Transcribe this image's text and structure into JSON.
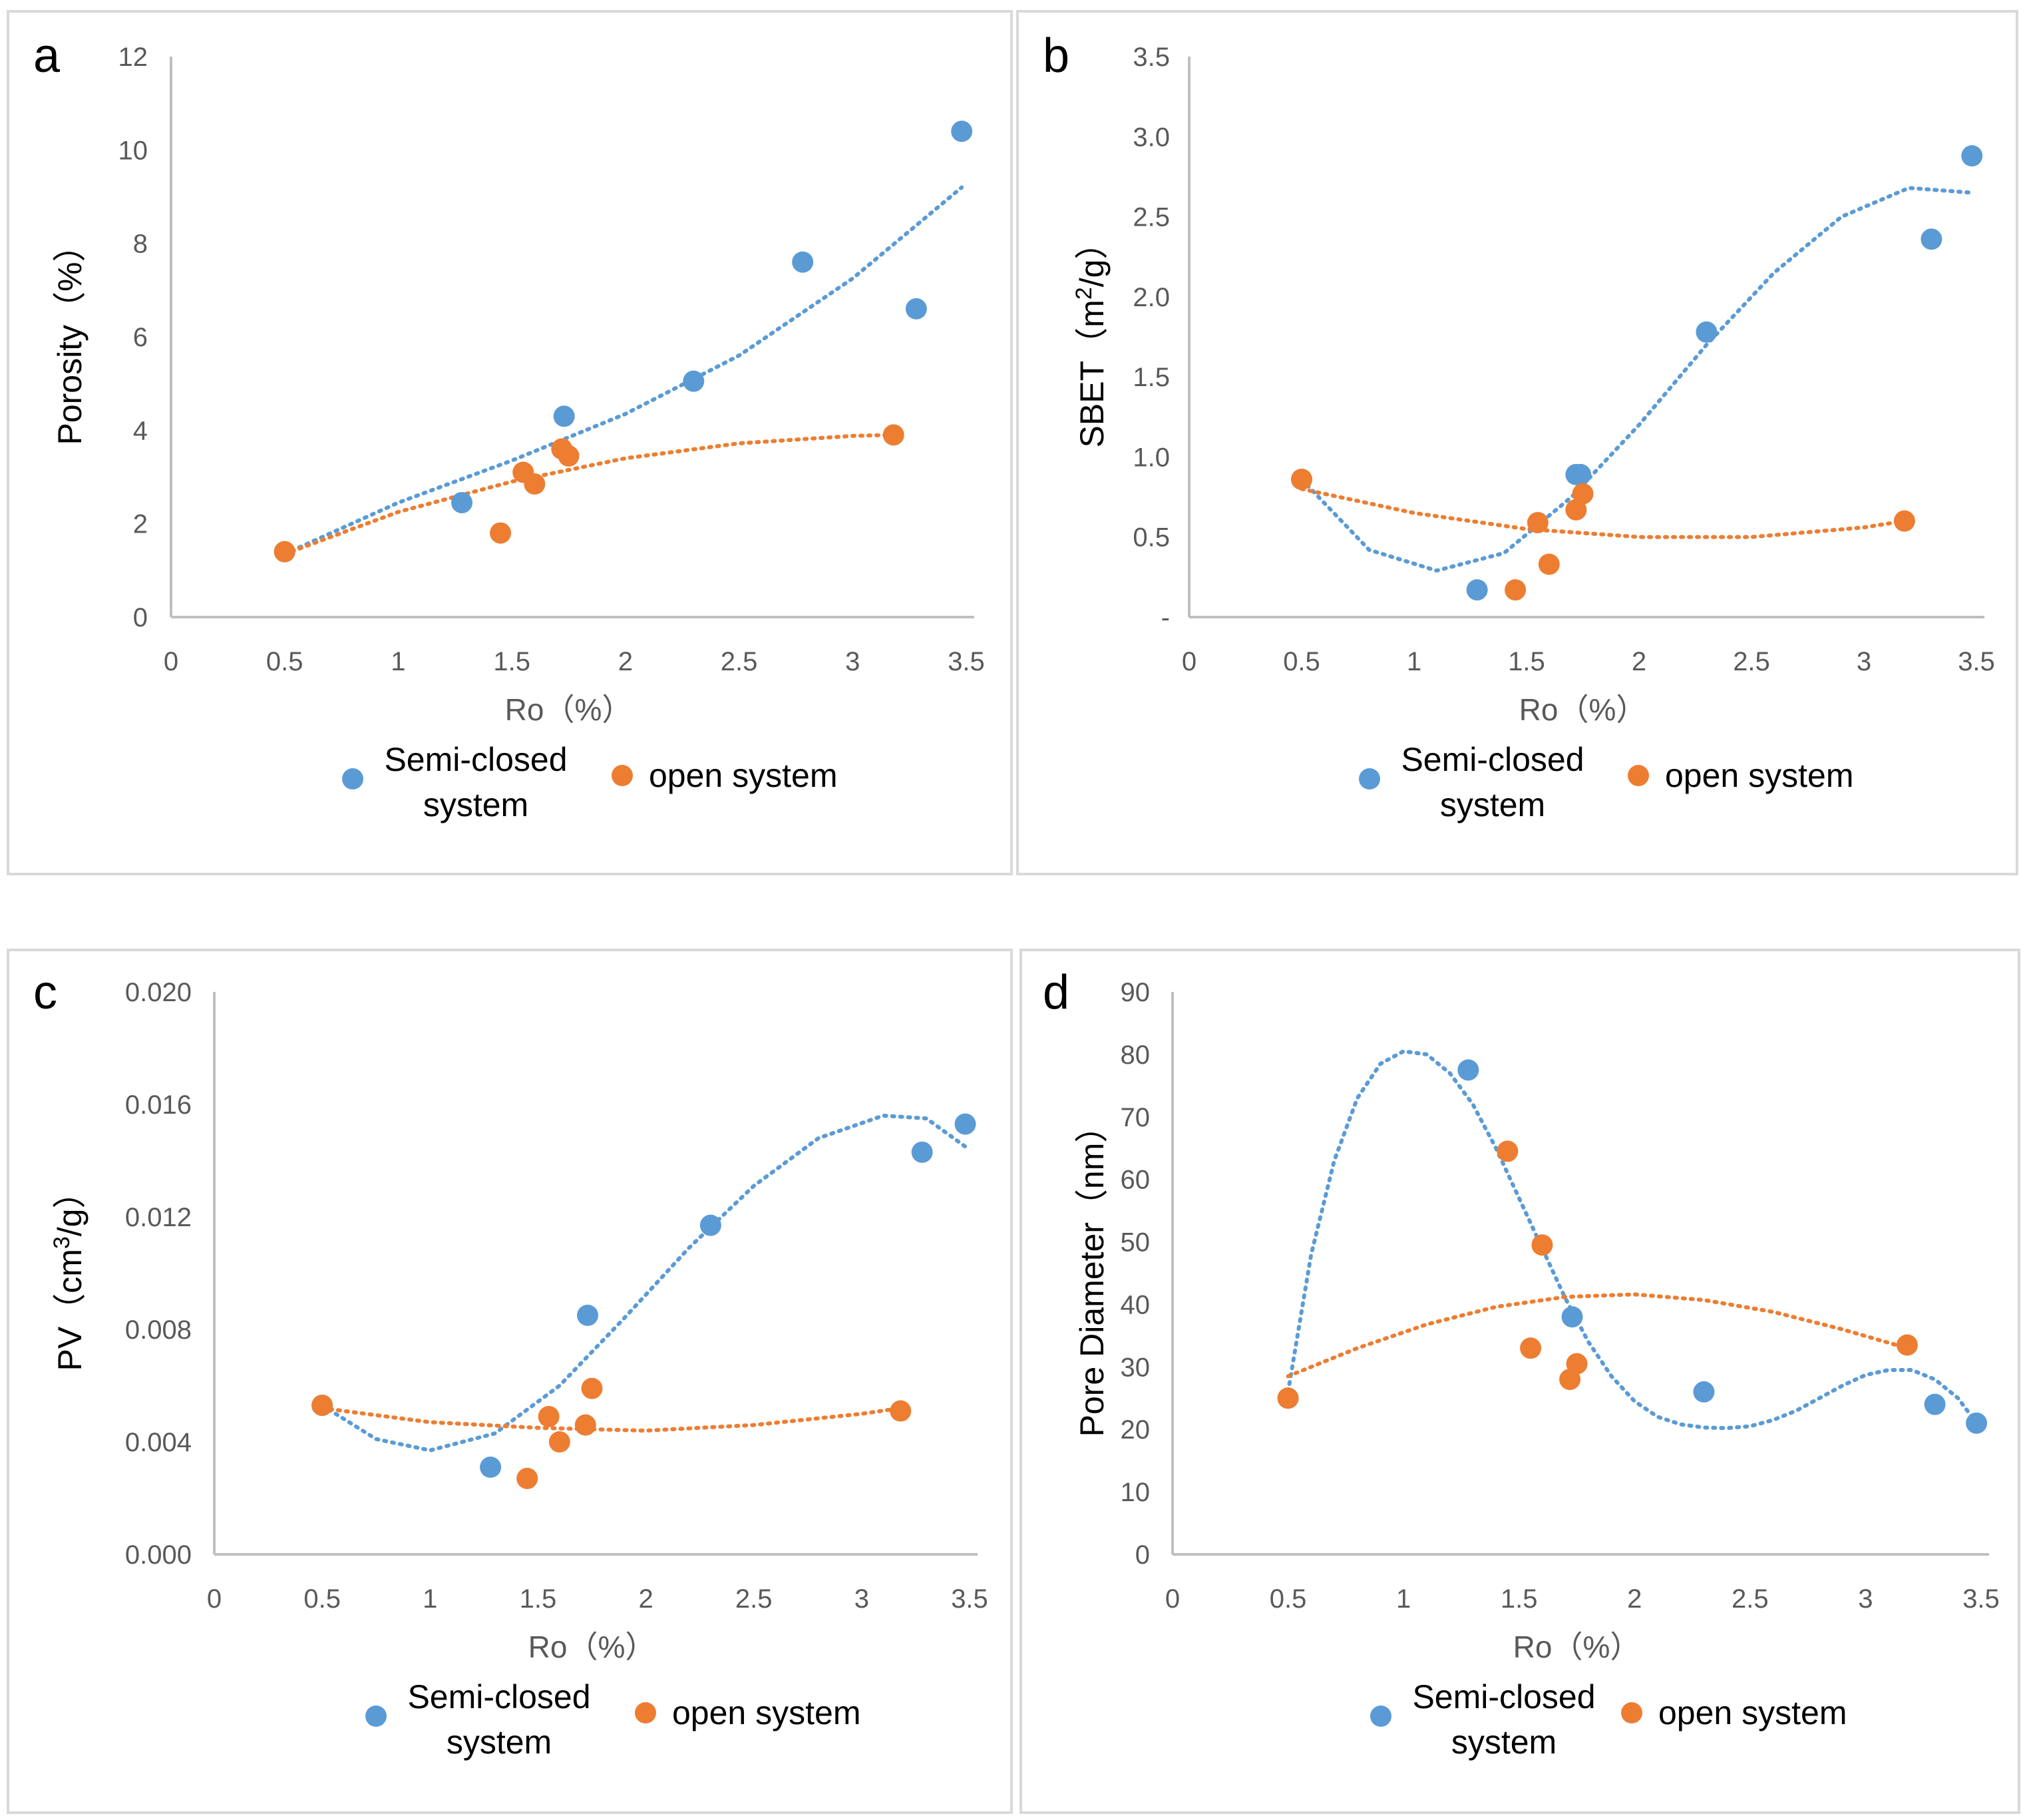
{
  "figure": {
    "semi_color": "#5b9bd5",
    "open_color": "#ed7d31"
  },
  "chart_data": [
    {
      "panel": "a",
      "type": "scatter",
      "title": "",
      "xlabel": "Ro（%）",
      "ylabel": "Porosity（%）",
      "xlim": [
        0,
        3.5
      ],
      "ylim": [
        0,
        12
      ],
      "xticks": [
        "0",
        "0.5",
        "1",
        "1.5",
        "2",
        "2.5",
        "3",
        "3.5"
      ],
      "yticks": [
        "0",
        "2",
        "4",
        "6",
        "8",
        "10",
        "12"
      ],
      "legend": [
        "Semi-closed system",
        "open system"
      ],
      "legend_placement": "bottom",
      "series": [
        {
          "name": "Semi-closed system",
          "color": "#5b9bd5",
          "trendline": "polynomial",
          "points": [
            [
              0.5,
              1.4
            ],
            [
              1.28,
              2.45
            ],
            [
              1.73,
              4.3
            ],
            [
              2.3,
              5.05
            ],
            [
              2.78,
              7.6
            ],
            [
              3.28,
              6.6
            ],
            [
              3.48,
              10.4
            ]
          ],
          "trend": [
            [
              0.5,
              1.35
            ],
            [
              1.0,
              2.45
            ],
            [
              1.5,
              3.35
            ],
            [
              2.0,
              4.35
            ],
            [
              2.5,
              5.6
            ],
            [
              3.0,
              7.25
            ],
            [
              3.48,
              9.2
            ]
          ]
        },
        {
          "name": "open system",
          "color": "#ed7d31",
          "trendline": "polynomial",
          "points": [
            [
              0.5,
              1.4
            ],
            [
              1.45,
              1.8
            ],
            [
              1.55,
              3.1
            ],
            [
              1.6,
              2.85
            ],
            [
              1.72,
              3.6
            ],
            [
              1.75,
              3.45
            ],
            [
              3.18,
              3.9
            ]
          ],
          "trend": [
            [
              0.5,
              1.35
            ],
            [
              1.0,
              2.25
            ],
            [
              1.5,
              2.9
            ],
            [
              2.0,
              3.4
            ],
            [
              2.5,
              3.72
            ],
            [
              3.0,
              3.88
            ],
            [
              3.18,
              3.9
            ]
          ]
        }
      ]
    },
    {
      "panel": "b",
      "type": "scatter",
      "title": "",
      "xlabel": "Ro（%）",
      "ylabel": "SBET（m²/g）",
      "ylabel_main": "SBET（m",
      "ylabel_sup": "2",
      "ylabel_tail": "/g）",
      "xlim": [
        0,
        3.5
      ],
      "ylim": [
        0,
        3.5
      ],
      "xticks": [
        "0",
        "0.5",
        "1",
        "1.5",
        "2",
        "2.5",
        "3",
        "3.5"
      ],
      "yticks": [
        "-",
        "0.5",
        "1.0",
        "1.5",
        "2.0",
        "2.5",
        "3.0",
        "3.5"
      ],
      "legend": [
        "Semi-closed system",
        "open system"
      ],
      "legend_placement": "bottom",
      "series": [
        {
          "name": "Semi-closed system",
          "color": "#5b9bd5",
          "trendline": "polynomial",
          "points": [
            [
              0.5,
              0.86
            ],
            [
              1.28,
              0.17
            ],
            [
              1.72,
              0.89
            ],
            [
              1.74,
              0.89
            ],
            [
              2.3,
              1.78
            ],
            [
              3.3,
              2.36
            ],
            [
              3.48,
              2.88
            ]
          ],
          "trend": [
            [
              0.5,
              0.86
            ],
            [
              0.8,
              0.42
            ],
            [
              1.1,
              0.29
            ],
            [
              1.4,
              0.4
            ],
            [
              1.7,
              0.75
            ],
            [
              2.0,
              1.2
            ],
            [
              2.3,
              1.7
            ],
            [
              2.6,
              2.15
            ],
            [
              2.9,
              2.5
            ],
            [
              3.2,
              2.68
            ],
            [
              3.48,
              2.65
            ]
          ]
        },
        {
          "name": "open system",
          "color": "#ed7d31",
          "trendline": "polynomial",
          "points": [
            [
              0.5,
              0.86
            ],
            [
              1.45,
              0.17
            ],
            [
              1.55,
              0.59
            ],
            [
              1.6,
              0.33
            ],
            [
              1.72,
              0.67
            ],
            [
              1.75,
              0.77
            ],
            [
              3.18,
              0.6
            ]
          ],
          "trend": [
            [
              0.5,
              0.8
            ],
            [
              1.0,
              0.65
            ],
            [
              1.5,
              0.55
            ],
            [
              2.0,
              0.5
            ],
            [
              2.5,
              0.5
            ],
            [
              3.0,
              0.56
            ],
            [
              3.18,
              0.6
            ]
          ]
        }
      ]
    },
    {
      "panel": "c",
      "type": "scatter",
      "title": "",
      "xlabel": "Ro（%）",
      "ylabel": "PV（cm³/g）",
      "ylabel_main": "PV（cm",
      "ylabel_sup": "3",
      "ylabel_tail": "/g）",
      "xlim": [
        0,
        3.5
      ],
      "ylim": [
        0,
        0.02
      ],
      "xticks": [
        "0",
        "0.5",
        "1",
        "1.5",
        "2",
        "2.5",
        "3",
        "3.5"
      ],
      "yticks": [
        "0.000",
        "0.004",
        "0.008",
        "0.012",
        "0.016",
        "0.020"
      ],
      "legend": [
        "Semi-closed system",
        "open system"
      ],
      "legend_placement": "bottom",
      "series": [
        {
          "name": "Semi-closed system",
          "color": "#5b9bd5",
          "trendline": "polynomial",
          "points": [
            [
              0.5,
              0.0053
            ],
            [
              1.28,
              0.0031
            ],
            [
              1.73,
              0.0085
            ],
            [
              2.3,
              0.0117
            ],
            [
              3.28,
              0.0143
            ],
            [
              3.48,
              0.0153
            ]
          ],
          "trend": [
            [
              0.5,
              0.0053
            ],
            [
              0.75,
              0.0041
            ],
            [
              1.0,
              0.0037
            ],
            [
              1.3,
              0.0043
            ],
            [
              1.6,
              0.006
            ],
            [
              1.9,
              0.0084
            ],
            [
              2.2,
              0.0109
            ],
            [
              2.5,
              0.0131
            ],
            [
              2.8,
              0.0148
            ],
            [
              3.1,
              0.0156
            ],
            [
              3.3,
              0.0155
            ],
            [
              3.48,
              0.0145
            ]
          ]
        },
        {
          "name": "open system",
          "color": "#ed7d31",
          "trendline": "polynomial",
          "points": [
            [
              0.5,
              0.0053
            ],
            [
              1.45,
              0.0027
            ],
            [
              1.55,
              0.0049
            ],
            [
              1.6,
              0.004
            ],
            [
              1.72,
              0.0046
            ],
            [
              1.75,
              0.0059
            ],
            [
              3.18,
              0.0051
            ]
          ],
          "trend": [
            [
              0.5,
              0.0052
            ],
            [
              1.0,
              0.0047
            ],
            [
              1.5,
              0.0045
            ],
            [
              2.0,
              0.0044
            ],
            [
              2.5,
              0.0046
            ],
            [
              3.0,
              0.005
            ],
            [
              3.18,
              0.0052
            ]
          ]
        }
      ]
    },
    {
      "panel": "d",
      "type": "scatter",
      "title": "",
      "xlabel": "Ro（%）",
      "ylabel": "Pore Diameter（nm）",
      "xlim": [
        0,
        3.5
      ],
      "ylim": [
        0,
        90
      ],
      "xticks": [
        "0",
        "0.5",
        "1",
        "1.5",
        "2",
        "2.5",
        "3",
        "3.5"
      ],
      "yticks": [
        "0",
        "10",
        "20",
        "30",
        "40",
        "50",
        "60",
        "70",
        "80",
        "90"
      ],
      "legend": [
        "Semi-closed system",
        "open system"
      ],
      "legend_placement": "bottom",
      "series": [
        {
          "name": "Semi-closed system",
          "color": "#5b9bd5",
          "trendline": "polynomial",
          "points": [
            [
              0.5,
              25
            ],
            [
              1.28,
              77.5
            ],
            [
              1.73,
              38
            ],
            [
              2.3,
              26
            ],
            [
              3.3,
              24
            ],
            [
              3.48,
              21
            ]
          ],
          "trend": [
            [
              0.5,
              26
            ],
            [
              0.6,
              48
            ],
            [
              0.7,
              63
            ],
            [
              0.8,
              73
            ],
            [
              0.9,
              78.5
            ],
            [
              1.0,
              80.5
            ],
            [
              1.1,
              80
            ],
            [
              1.2,
              77
            ],
            [
              1.3,
              72
            ],
            [
              1.4,
              65
            ],
            [
              1.5,
              57
            ],
            [
              1.6,
              49
            ],
            [
              1.7,
              41
            ],
            [
              1.8,
              34
            ],
            [
              1.9,
              28.5
            ],
            [
              2.0,
              24.5
            ],
            [
              2.1,
              22
            ],
            [
              2.2,
              20.8
            ],
            [
              2.3,
              20.3
            ],
            [
              2.4,
              20.2
            ],
            [
              2.5,
              20.5
            ],
            [
              2.6,
              21.5
            ],
            [
              2.7,
              23
            ],
            [
              2.8,
              25
            ],
            [
              2.9,
              27
            ],
            [
              3.0,
              28.7
            ],
            [
              3.1,
              29.5
            ],
            [
              3.2,
              29.5
            ],
            [
              3.3,
              28
            ],
            [
              3.4,
              25
            ],
            [
              3.48,
              21
            ]
          ]
        },
        {
          "name": "open system",
          "color": "#ed7d31",
          "trendline": "polynomial",
          "points": [
            [
              0.5,
              25
            ],
            [
              1.45,
              64.5
            ],
            [
              1.55,
              33
            ],
            [
              1.6,
              49.5
            ],
            [
              1.72,
              28
            ],
            [
              1.75,
              30.5
            ],
            [
              3.18,
              33.5
            ]
          ],
          "trend": [
            [
              0.5,
              28.5
            ],
            [
              0.8,
              33
            ],
            [
              1.1,
              36.8
            ],
            [
              1.4,
              39.6
            ],
            [
              1.7,
              41.2
            ],
            [
              2.0,
              41.6
            ],
            [
              2.3,
              40.7
            ],
            [
              2.6,
              38.8
            ],
            [
              2.9,
              36
            ],
            [
              3.18,
              33
            ]
          ]
        }
      ]
    }
  ]
}
